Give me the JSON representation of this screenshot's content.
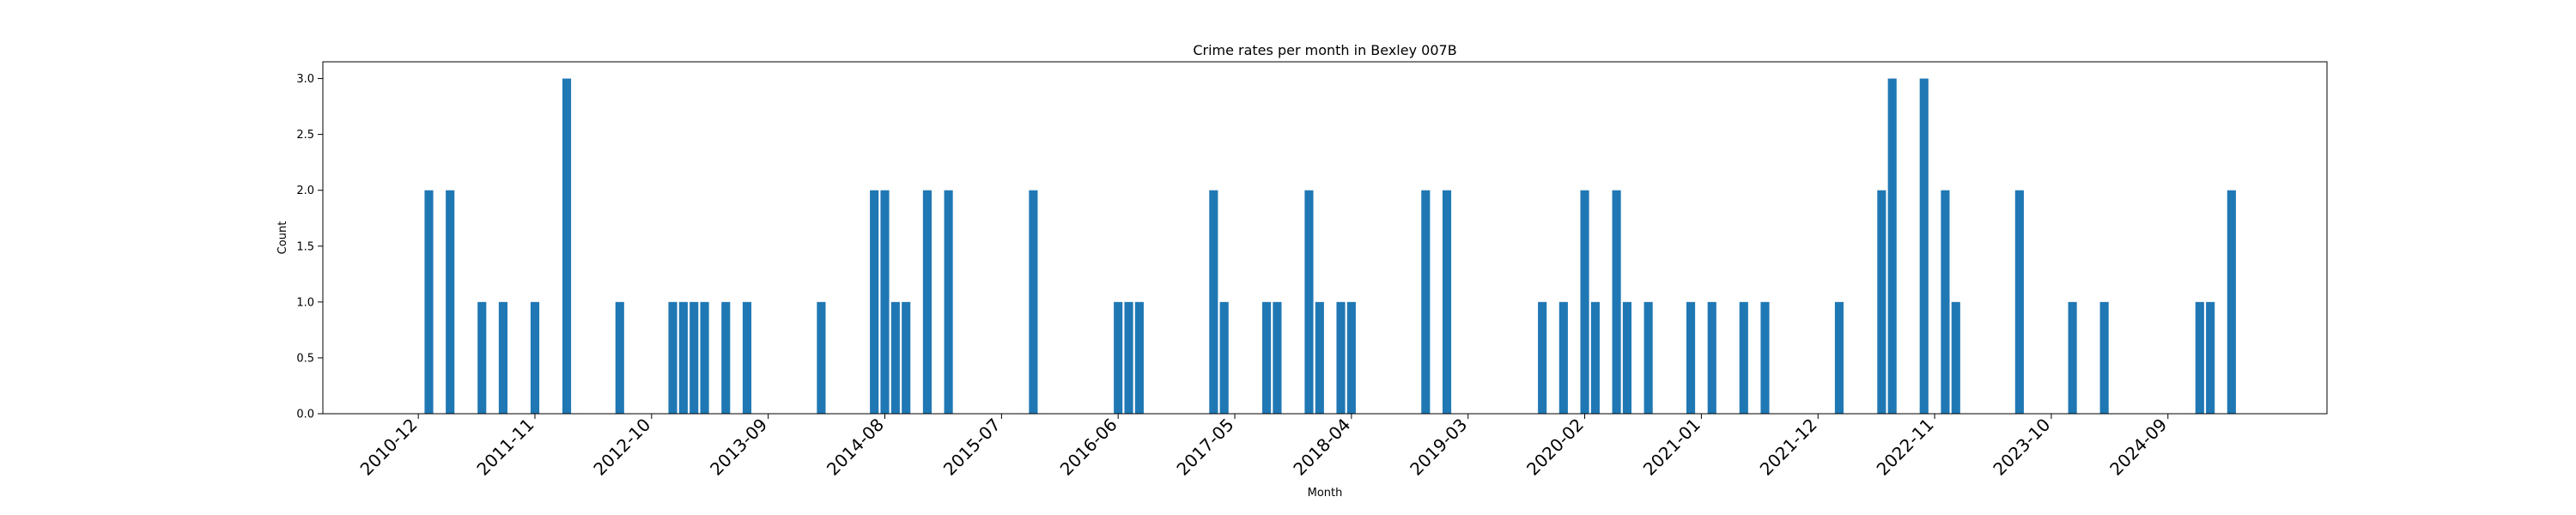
{
  "chart_data": {
    "type": "bar",
    "title": "Crime rates per month in Bexley 007B",
    "xlabel": "Month",
    "ylabel": "Count",
    "ylim": [
      0,
      3.15
    ],
    "xlim": [
      "2010-03",
      "2025-12"
    ],
    "yticks": [
      "0.0",
      "0.5",
      "1.0",
      "1.5",
      "2.0",
      "2.5",
      "3.0"
    ],
    "xticks": [
      "2010-12",
      "2011-11",
      "2012-10",
      "2013-09",
      "2014-08",
      "2015-07",
      "2016-06",
      "2017-05",
      "2018-04",
      "2019-03",
      "2020-02",
      "2021-01",
      "2021-12",
      "2022-11",
      "2023-10",
      "2024-09"
    ],
    "grid": false,
    "bar_color": "#1f77b4",
    "categories": [
      "2011-01",
      "2011-03",
      "2011-06",
      "2011-08",
      "2011-11",
      "2012-02",
      "2012-07",
      "2012-12",
      "2013-01",
      "2013-02",
      "2013-03",
      "2013-05",
      "2013-07",
      "2014-02",
      "2014-07",
      "2014-08",
      "2014-09",
      "2014-10",
      "2014-12",
      "2015-02",
      "2015-10",
      "2016-06",
      "2016-07",
      "2016-08",
      "2017-03",
      "2017-04",
      "2017-08",
      "2017-09",
      "2017-12",
      "2018-01",
      "2018-03",
      "2018-04",
      "2018-11",
      "2019-01",
      "2019-10",
      "2019-12",
      "2020-02",
      "2020-03",
      "2020-05",
      "2020-06",
      "2020-08",
      "2020-12",
      "2021-02",
      "2021-05",
      "2021-07",
      "2022-02",
      "2022-06",
      "2022-07",
      "2022-10",
      "2022-12",
      "2023-01",
      "2023-07",
      "2023-12",
      "2024-03",
      "2024-12",
      "2025-01",
      "2025-03"
    ],
    "values": [
      2,
      2,
      1,
      1,
      1,
      3,
      1,
      1,
      1,
      1,
      1,
      1,
      1,
      1,
      2,
      2,
      1,
      1,
      2,
      2,
      2,
      1,
      1,
      1,
      2,
      1,
      1,
      1,
      2,
      1,
      1,
      1,
      2,
      2,
      1,
      1,
      2,
      1,
      2,
      1,
      1,
      1,
      1,
      1,
      1,
      1,
      2,
      3,
      3,
      2,
      1,
      2,
      1,
      1,
      1,
      1,
      2
    ]
  }
}
